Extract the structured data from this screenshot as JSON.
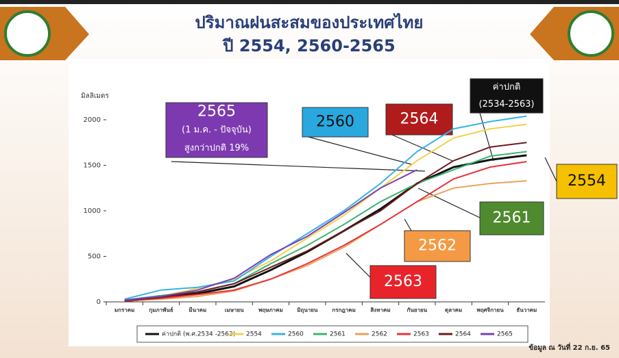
{
  "header": {
    "title_lines": [
      "ปริมาณฝนสะสมของประเทศไทย",
      "ปี 2554, 2560-2565"
    ]
  },
  "chart_data": {
    "type": "line",
    "y_axis_label": "มิลลิเมตร",
    "categories": [
      "มกราคม",
      "กุมภาพันธ์",
      "มีนาคม",
      "เมษายน",
      "พฤษภาคม",
      "มิถุนายน",
      "กรกฎาคม",
      "สิงหาคม",
      "กันยายน",
      "ตุลาคม",
      "พฤศจิกายน",
      "ธันวาคม"
    ],
    "ylim": [
      0,
      2150
    ],
    "yticks": [
      0,
      500,
      1000,
      1500,
      2000
    ],
    "series": [
      {
        "name": "ค่าปกติ (พ.ศ.2534 -2563)",
        "color": "#111111",
        "values": [
          10,
          40,
          90,
          170,
          350,
          550,
          780,
          1020,
          1300,
          1480,
          1560,
          1610
        ]
      },
      {
        "name": "2554",
        "color": "#f2d24a",
        "values": [
          15,
          60,
          150,
          250,
          450,
          700,
          950,
          1250,
          1550,
          1800,
          1900,
          1950
        ]
      },
      {
        "name": "2560",
        "color": "#35b3e6",
        "values": [
          30,
          130,
          160,
          230,
          500,
          750,
          1000,
          1300,
          1650,
          1900,
          1980,
          2040
        ]
      },
      {
        "name": "2561",
        "color": "#3cb371",
        "values": [
          20,
          70,
          110,
          200,
          420,
          620,
          850,
          1100,
          1300,
          1450,
          1600,
          1650
        ]
      },
      {
        "name": "2562",
        "color": "#e8a15a",
        "values": [
          10,
          30,
          60,
          120,
          250,
          400,
          600,
          850,
          1100,
          1250,
          1300,
          1330
        ]
      },
      {
        "name": "2563",
        "color": "#e8323a",
        "values": [
          10,
          40,
          80,
          130,
          250,
          420,
          620,
          850,
          1100,
          1350,
          1480,
          1540
        ]
      },
      {
        "name": "2564",
        "color": "#6b1d1d",
        "values": [
          15,
          50,
          110,
          200,
          380,
          560,
          780,
          1000,
          1300,
          1550,
          1700,
          1750
        ]
      },
      {
        "name": "2565",
        "color": "#7b3fb5",
        "values": [
          20,
          60,
          130,
          260,
          520,
          720,
          980,
          1250,
          1450,
          null,
          null,
          null
        ]
      }
    ],
    "annotations": [
      {
        "lines": [
          "2565",
          "(1 ม.ค. - ปัจจุบัน)",
          "สูงกว่าปกติ 19%"
        ],
        "color": "#7d3ab0"
      },
      {
        "lines": [
          "2560"
        ],
        "color": "#29a8e0"
      },
      {
        "lines": [
          "2564"
        ],
        "color": "#b01c1c"
      },
      {
        "lines": [
          "ค่าปกติ",
          "(2534-2563)"
        ],
        "color": "#111111"
      },
      {
        "lines": [
          "2554"
        ],
        "color": "#f5c000"
      },
      {
        "lines": [
          "2561"
        ],
        "color": "#4f8a2e"
      },
      {
        "lines": [
          "2562"
        ],
        "color": "#f59a44"
      },
      {
        "lines": [
          "2563"
        ],
        "color": "#e8232a"
      }
    ]
  },
  "footer": "ข้อมูล ณ วันที่ 22 ก.ย. 65"
}
